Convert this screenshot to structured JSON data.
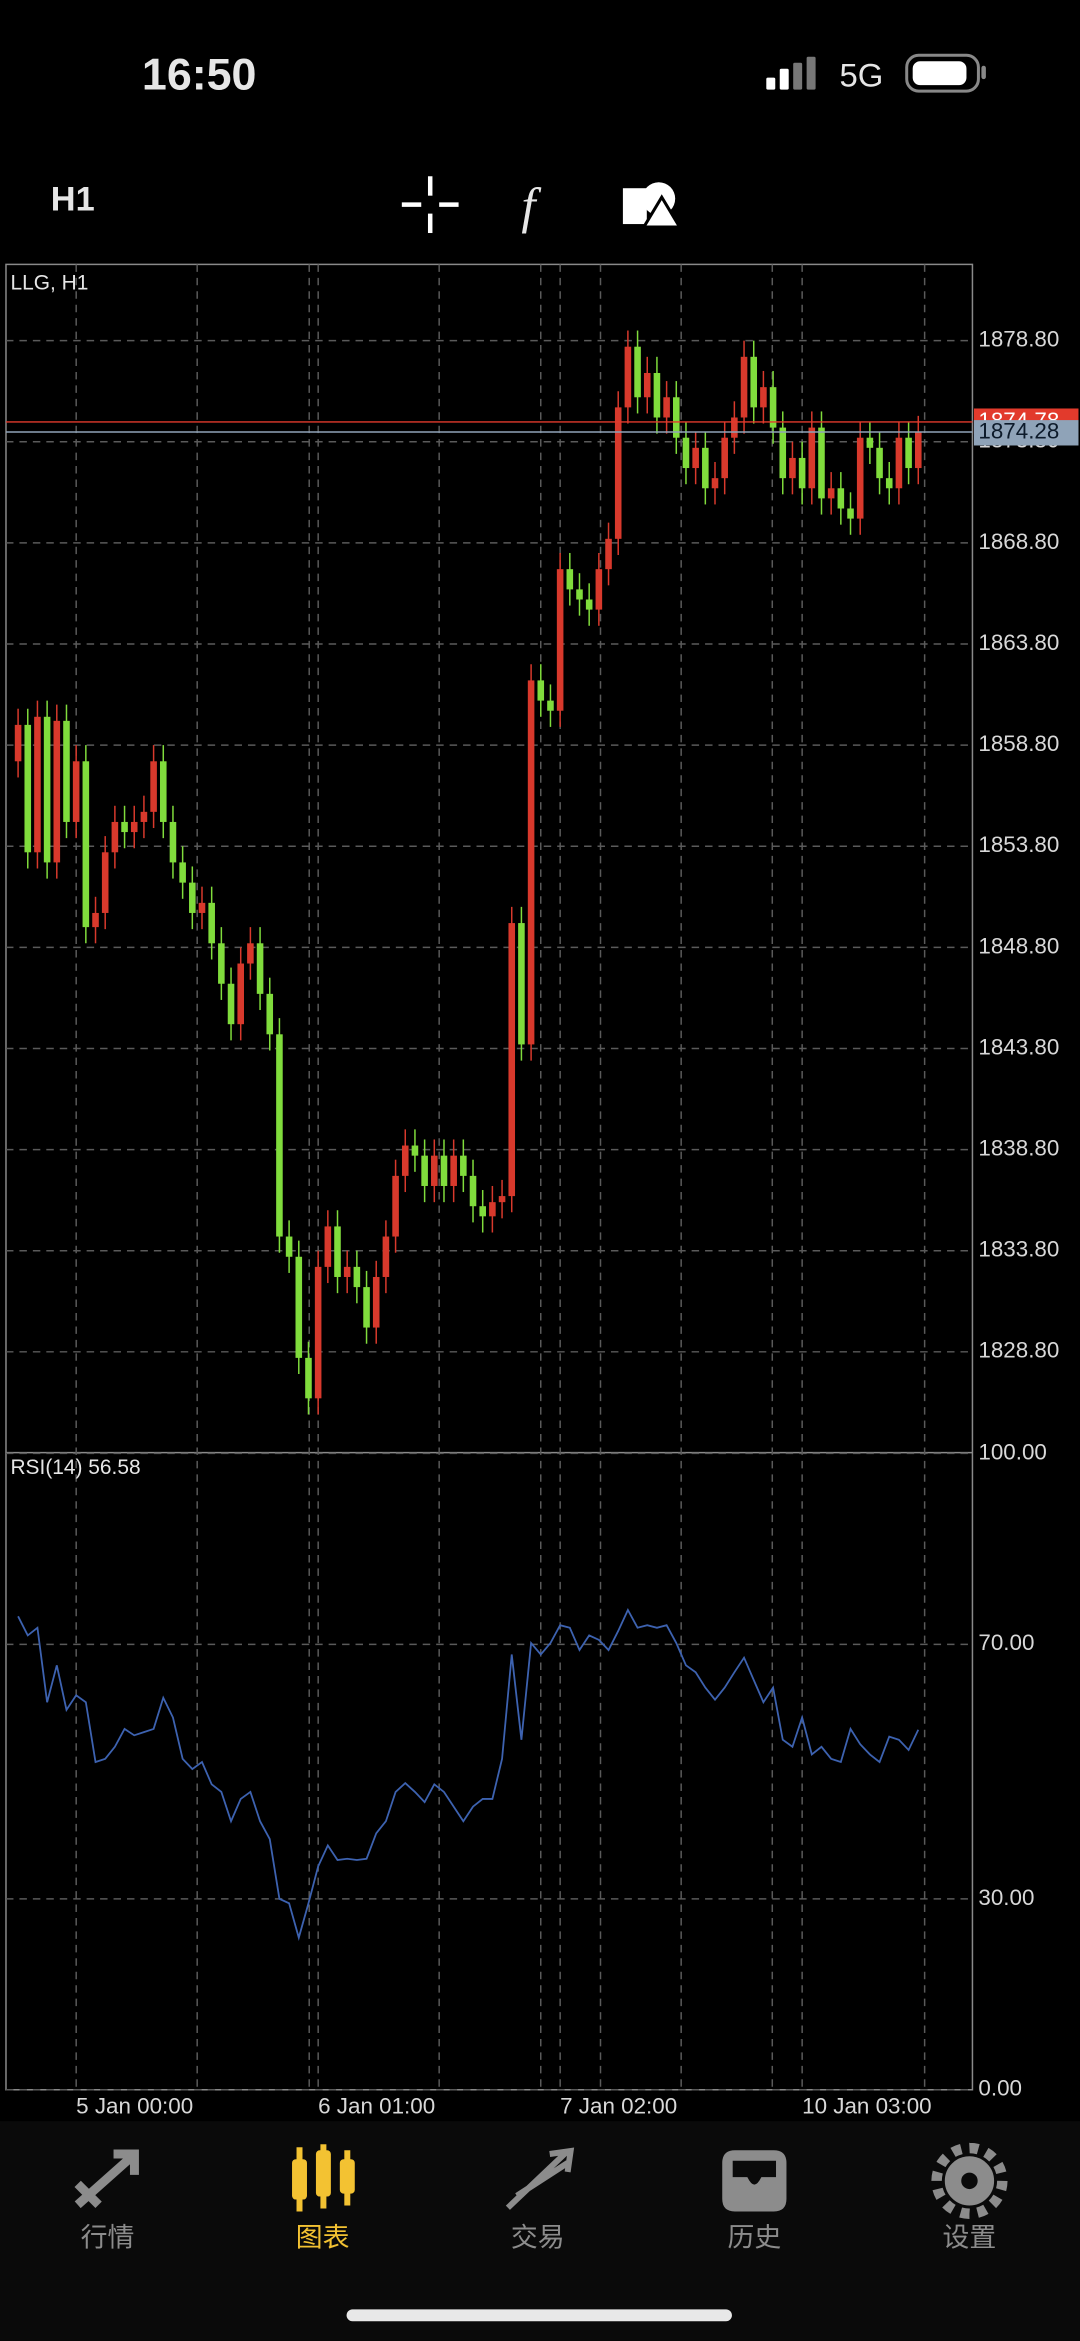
{
  "status_bar": {
    "time": "16:50",
    "network": "5G"
  },
  "toolbar": {
    "timeframe": "H1"
  },
  "chart_data": [
    {
      "type": "candlestick",
      "title": "LLG, H1",
      "categories": [
        null,
        null,
        null,
        null,
        null,
        null,
        "5 Jan 00:00",
        null,
        null,
        null,
        null,
        null,
        null,
        null,
        null,
        null,
        null,
        null,
        null,
        null,
        null,
        null,
        null,
        null,
        null,
        null,
        null,
        null,
        null,
        null,
        null,
        "6 Jan 01:00",
        null,
        null,
        null,
        null,
        null,
        null,
        null,
        null,
        null,
        null,
        null,
        null,
        null,
        null,
        null,
        null,
        null,
        null,
        null,
        null,
        null,
        null,
        null,
        null,
        "7 Jan 02:00",
        null,
        null,
        null,
        null,
        null,
        null,
        null,
        null,
        null,
        null,
        null,
        null,
        null,
        null,
        null,
        null,
        null,
        null,
        null,
        null,
        null,
        null,
        null,
        null,
        "10 Jan 03:00",
        null,
        null,
        null,
        null,
        null,
        null,
        null,
        null,
        null,
        null,
        null,
        null
      ],
      "open": [
        1858.0,
        1859.8,
        1853.5,
        1860.2,
        1853.0,
        1860.0,
        1855.0,
        1858.0,
        1849.8,
        1850.5,
        1853.5,
        1855.0,
        1854.5,
        1855.0,
        1855.5,
        1858.0,
        1855.0,
        1853.0,
        1852.0,
        1850.5,
        1851.0,
        1849.0,
        1847.0,
        1845.0,
        1848.0,
        1849.0,
        1846.5,
        1844.5,
        1834.5,
        1833.5,
        1828.5,
        1826.5,
        1833.0,
        1835.0,
        1832.5,
        1833.0,
        1832.0,
        1830.0,
        1832.5,
        1834.5,
        1837.5,
        1839.0,
        1838.5,
        1837.0,
        1838.5,
        1837.0,
        1838.5,
        1837.5,
        1836.0,
        1835.5,
        1836.2,
        1836.5,
        1850.0,
        1844.0,
        1862.0,
        1861.0,
        1860.5,
        1867.5,
        1866.5,
        1866.0,
        1865.5,
        1867.5,
        1869.0,
        1875.5,
        1878.5,
        1876.0,
        1877.2,
        1875.0,
        1876.0,
        1874.0,
        1872.5,
        1873.5,
        1871.5,
        1872.0,
        1874.0,
        1875.0,
        1878.0,
        1875.5,
        1876.5,
        1874.5,
        1872.0,
        1873.0,
        1871.5,
        1874.5,
        1871.0,
        1871.5,
        1870.5,
        1870.0,
        1874.0,
        1873.5,
        1872.0,
        1871.5,
        1874.0,
        1872.5
      ],
      "high": [
        1860.6,
        1860.6,
        1861.0,
        1861.0,
        1860.8,
        1860.8,
        1858.8,
        1858.8,
        1851.3,
        1854.3,
        1855.8,
        1855.8,
        1855.8,
        1856.3,
        1858.8,
        1858.8,
        1855.8,
        1853.8,
        1852.8,
        1851.8,
        1851.8,
        1849.8,
        1847.8,
        1848.8,
        1849.8,
        1849.8,
        1847.3,
        1845.3,
        1835.3,
        1834.3,
        1829.3,
        1833.8,
        1835.8,
        1835.8,
        1833.8,
        1833.8,
        1832.8,
        1833.3,
        1835.3,
        1838.3,
        1839.8,
        1839.8,
        1839.3,
        1839.3,
        1839.3,
        1839.3,
        1839.3,
        1838.3,
        1836.8,
        1837.0,
        1837.3,
        1850.8,
        1850.8,
        1862.8,
        1862.8,
        1861.8,
        1868.3,
        1868.3,
        1867.3,
        1866.8,
        1868.3,
        1869.8,
        1876.3,
        1879.3,
        1879.3,
        1878.0,
        1878.0,
        1876.8,
        1876.8,
        1874.8,
        1874.3,
        1874.3,
        1872.8,
        1874.8,
        1875.8,
        1878.8,
        1878.8,
        1877.3,
        1877.3,
        1875.3,
        1873.8,
        1873.8,
        1875.3,
        1875.3,
        1872.3,
        1872.3,
        1871.3,
        1874.8,
        1874.8,
        1874.3,
        1872.8,
        1874.8,
        1874.8,
        1875.08
      ],
      "low": [
        1857.2,
        1852.7,
        1852.7,
        1852.2,
        1852.2,
        1854.2,
        1854.2,
        1849.0,
        1849.0,
        1849.7,
        1852.7,
        1853.7,
        1853.7,
        1854.2,
        1854.7,
        1854.2,
        1852.2,
        1851.2,
        1849.7,
        1849.7,
        1848.2,
        1846.2,
        1844.2,
        1844.2,
        1847.2,
        1845.7,
        1843.7,
        1833.7,
        1832.7,
        1827.7,
        1825.7,
        1825.7,
        1832.2,
        1831.7,
        1831.7,
        1831.2,
        1829.2,
        1829.2,
        1831.7,
        1833.7,
        1836.7,
        1837.7,
        1836.2,
        1836.2,
        1836.2,
        1836.2,
        1836.7,
        1835.2,
        1834.7,
        1834.7,
        1835.4,
        1835.7,
        1843.2,
        1843.2,
        1860.2,
        1859.7,
        1859.7,
        1865.7,
        1865.2,
        1864.7,
        1864.7,
        1866.7,
        1868.2,
        1874.7,
        1875.2,
        1875.2,
        1874.2,
        1874.2,
        1873.2,
        1871.7,
        1871.7,
        1870.7,
        1870.7,
        1871.2,
        1873.2,
        1874.2,
        1874.7,
        1874.7,
        1873.7,
        1871.2,
        1871.2,
        1870.7,
        1870.7,
        1870.2,
        1870.2,
        1869.7,
        1869.2,
        1869.2,
        1872.7,
        1871.2,
        1870.7,
        1870.7,
        1871.7,
        1871.7
      ],
      "close": [
        1859.8,
        1853.5,
        1860.2,
        1853.0,
        1860.0,
        1855.0,
        1858.0,
        1849.8,
        1850.5,
        1853.5,
        1855.0,
        1854.5,
        1855.0,
        1855.5,
        1858.0,
        1855.0,
        1853.0,
        1852.0,
        1850.5,
        1851.0,
        1849.0,
        1847.0,
        1845.0,
        1848.0,
        1849.0,
        1846.5,
        1844.5,
        1834.5,
        1833.5,
        1828.5,
        1826.5,
        1833.0,
        1835.0,
        1832.5,
        1833.0,
        1832.0,
        1830.0,
        1832.5,
        1834.5,
        1837.5,
        1839.0,
        1838.5,
        1837.0,
        1838.5,
        1837.0,
        1838.5,
        1837.5,
        1836.0,
        1835.5,
        1836.2,
        1836.5,
        1850.0,
        1844.0,
        1862.0,
        1861.0,
        1860.5,
        1867.5,
        1866.5,
        1866.0,
        1865.5,
        1867.5,
        1869.0,
        1875.5,
        1878.5,
        1876.0,
        1877.2,
        1875.0,
        1876.0,
        1874.0,
        1872.5,
        1873.5,
        1871.5,
        1872.0,
        1874.0,
        1875.0,
        1878.0,
        1875.5,
        1876.5,
        1874.5,
        1872.0,
        1873.0,
        1871.5,
        1874.5,
        1871.0,
        1871.5,
        1870.5,
        1870.0,
        1874.0,
        1873.5,
        1872.0,
        1871.5,
        1874.0,
        1872.5,
        1874.28
      ],
      "up_color": "#d8392c",
      "down_color": "#80dc3c",
      "bid": 1874.28,
      "ask": 1874.78,
      "bid_color": "#8fa3b8",
      "ask_color": "#e23a2c",
      "ylim": [
        1823.85,
        1882.57
      ],
      "yticks": [
        {
          "value": 1828.8,
          "label": "1828.80"
        },
        {
          "value": 1833.8,
          "label": "1833.80"
        },
        {
          "value": 1838.8,
          "label": "1838.80"
        },
        {
          "value": 1843.8,
          "label": "1843.80"
        },
        {
          "value": 1848.8,
          "label": "1848.80"
        },
        {
          "value": 1853.8,
          "label": "1853.80"
        },
        {
          "value": 1858.8,
          "label": "1858.80"
        },
        {
          "value": 1863.8,
          "label": "1863.80"
        },
        {
          "value": 1868.8,
          "label": "1868.80"
        },
        {
          "value": 1873.8,
          "label": "1873.80"
        },
        {
          "value": 1878.8,
          "label": "1878.80"
        }
      ],
      "grid": true
    },
    {
      "type": "line",
      "title": "RSI(14) 56.58",
      "color": "#3d62b0",
      "values": [
        74.4,
        71.4,
        72.6,
        60.9,
        66.7,
        59.7,
        62.0,
        60.9,
        51.5,
        52.0,
        53.9,
        56.7,
        55.7,
        56.2,
        56.7,
        61.6,
        58.5,
        52.0,
        50.4,
        51.5,
        48.0,
        46.8,
        42.2,
        45.7,
        46.8,
        42.2,
        39.4,
        30.0,
        29.3,
        23.9,
        29.3,
        35.1,
        38.4,
        36.1,
        36.3,
        36.1,
        36.3,
        40.3,
        42.2,
        46.8,
        48.2,
        46.8,
        45.2,
        48.0,
        46.8,
        44.5,
        42.2,
        44.5,
        45.7,
        45.7,
        52.0,
        68.4,
        55.0,
        70.2,
        68.4,
        70.2,
        73.0,
        72.6,
        69.1,
        71.4,
        70.7,
        69.1,
        72.1,
        75.4,
        72.6,
        73.0,
        72.6,
        73.0,
        70.2,
        66.7,
        65.6,
        63.2,
        61.3,
        63.2,
        65.6,
        67.9,
        64.4,
        60.9,
        63.2,
        55.0,
        53.9,
        58.5,
        52.7,
        53.9,
        52.0,
        51.5,
        56.7,
        54.3,
        52.7,
        51.5,
        55.5,
        55.0,
        53.4,
        56.58
      ],
      "ylim": [
        0,
        100
      ],
      "yticks": [
        {
          "value": 0,
          "label": "0.00"
        },
        {
          "value": 30,
          "label": "30.00"
        },
        {
          "value": 70,
          "label": "70.00"
        },
        {
          "value": 100,
          "label": "100.00"
        }
      ],
      "grid": true
    }
  ],
  "nav": {
    "items": [
      {
        "label": "行情"
      },
      {
        "label": "图表"
      },
      {
        "label": "交易"
      },
      {
        "label": "历史"
      },
      {
        "label": "设置"
      }
    ],
    "active": 1,
    "active_color": "#f3c232",
    "color": "#8c8c8c"
  }
}
